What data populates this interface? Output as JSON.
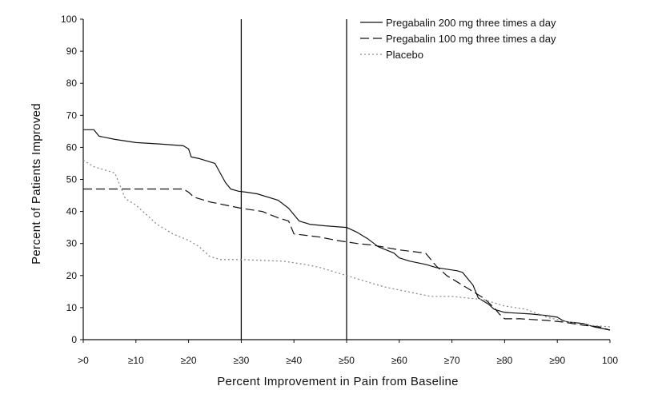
{
  "chart_data": {
    "type": "line",
    "title": "",
    "xlabel": "Percent Improvement in Pain from Baseline",
    "ylabel": "Percent of Patients Improved",
    "xlim": [
      0,
      100
    ],
    "ylim": [
      0,
      100
    ],
    "x_ticks": [
      {
        "value": 0,
        "label": ">0"
      },
      {
        "value": 10,
        "label": "≥10"
      },
      {
        "value": 20,
        "label": "≥20"
      },
      {
        "value": 30,
        "label": "≥30"
      },
      {
        "value": 40,
        "label": "≥40"
      },
      {
        "value": 50,
        "label": "≥50"
      },
      {
        "value": 60,
        "label": "≥60"
      },
      {
        "value": 70,
        "label": "≥70"
      },
      {
        "value": 80,
        "label": "≥80"
      },
      {
        "value": 90,
        "label": "≥90"
      },
      {
        "value": 100,
        "label": "100"
      }
    ],
    "y_ticks": [
      0,
      10,
      20,
      30,
      40,
      50,
      60,
      70,
      80,
      90,
      100
    ],
    "grid": false,
    "legend_position": "top-right",
    "reference_lines_x": [
      30,
      50
    ],
    "series": [
      {
        "name": "Pregabalin 200 mg three times a day",
        "style": "solid",
        "color": "#111111",
        "points": [
          [
            0,
            65.5
          ],
          [
            2,
            65.5
          ],
          [
            3,
            63.5
          ],
          [
            6,
            62.5
          ],
          [
            10,
            61.5
          ],
          [
            15,
            61
          ],
          [
            19,
            60.5
          ],
          [
            20,
            59.5
          ],
          [
            20.5,
            57
          ],
          [
            22,
            56.5
          ],
          [
            25,
            55
          ],
          [
            26,
            52
          ],
          [
            27,
            49
          ],
          [
            28,
            47
          ],
          [
            29.5,
            46.3
          ],
          [
            31,
            46
          ],
          [
            33,
            45.5
          ],
          [
            37,
            43.5
          ],
          [
            39,
            41
          ],
          [
            40,
            39
          ],
          [
            41,
            37
          ],
          [
            43,
            36
          ],
          [
            46,
            35.5
          ],
          [
            50,
            35
          ],
          [
            52,
            33.5
          ],
          [
            54,
            31.5
          ],
          [
            56,
            29
          ],
          [
            59,
            27
          ],
          [
            60,
            25.5
          ],
          [
            62,
            24.5
          ],
          [
            65,
            23.5
          ],
          [
            67,
            22.5
          ],
          [
            69,
            22
          ],
          [
            71,
            21.5
          ],
          [
            72,
            21
          ],
          [
            73,
            19
          ],
          [
            74,
            17
          ],
          [
            75,
            13
          ],
          [
            76,
            12
          ],
          [
            77,
            11
          ],
          [
            78,
            9.5
          ],
          [
            79,
            9
          ],
          [
            80,
            8.5
          ],
          [
            85,
            8
          ],
          [
            88,
            7.5
          ],
          [
            90,
            7
          ],
          [
            91,
            6
          ],
          [
            92,
            5.5
          ],
          [
            95,
            5
          ],
          [
            97,
            4
          ],
          [
            100,
            3
          ]
        ]
      },
      {
        "name": "Pregabalin 100 mg three times a day",
        "style": "dashed",
        "color": "#111111",
        "points": [
          [
            0,
            47
          ],
          [
            19,
            47
          ],
          [
            20,
            46
          ],
          [
            21,
            44.5
          ],
          [
            24,
            43
          ],
          [
            27,
            42
          ],
          [
            30,
            41
          ],
          [
            34,
            40
          ],
          [
            37,
            38
          ],
          [
            38,
            37.5
          ],
          [
            39,
            37
          ],
          [
            40,
            33
          ],
          [
            45,
            32
          ],
          [
            48,
            31
          ],
          [
            50,
            30.5
          ],
          [
            52,
            30
          ],
          [
            55,
            29.5
          ],
          [
            60,
            28
          ],
          [
            65,
            27
          ],
          [
            66,
            25
          ],
          [
            67,
            23
          ],
          [
            69,
            20
          ],
          [
            71,
            18
          ],
          [
            73,
            16
          ],
          [
            75,
            14
          ],
          [
            76,
            13
          ],
          [
            77,
            11.5
          ],
          [
            78,
            10
          ],
          [
            79,
            8
          ],
          [
            80,
            6.5
          ],
          [
            83,
            6.5
          ],
          [
            88,
            6
          ],
          [
            91,
            5.5
          ],
          [
            95,
            4.5
          ],
          [
            98,
            4
          ],
          [
            100,
            3
          ]
        ]
      },
      {
        "name": "Placebo",
        "style": "dotted",
        "color": "#8c8c8c",
        "points": [
          [
            0,
            56
          ],
          [
            2,
            54
          ],
          [
            4,
            53
          ],
          [
            6,
            52
          ],
          [
            7,
            48
          ],
          [
            8,
            44
          ],
          [
            10,
            42
          ],
          [
            12,
            39
          ],
          [
            14,
            36
          ],
          [
            17,
            33
          ],
          [
            20,
            31
          ],
          [
            22,
            29
          ],
          [
            24,
            26
          ],
          [
            26,
            25
          ],
          [
            30,
            25
          ],
          [
            38,
            24.5
          ],
          [
            42,
            23.5
          ],
          [
            45,
            22.5
          ],
          [
            48,
            21
          ],
          [
            50,
            20
          ],
          [
            53,
            18.5
          ],
          [
            57,
            16.5
          ],
          [
            60,
            15.5
          ],
          [
            63,
            14.5
          ],
          [
            66,
            13.5
          ],
          [
            70,
            13.5
          ],
          [
            73,
            13
          ],
          [
            76,
            12.5
          ],
          [
            78,
            11.5
          ],
          [
            80,
            10.5
          ],
          [
            84,
            9.5
          ],
          [
            88,
            7
          ],
          [
            92,
            5.5
          ],
          [
            96,
            4.5
          ],
          [
            100,
            4
          ]
        ]
      }
    ]
  }
}
